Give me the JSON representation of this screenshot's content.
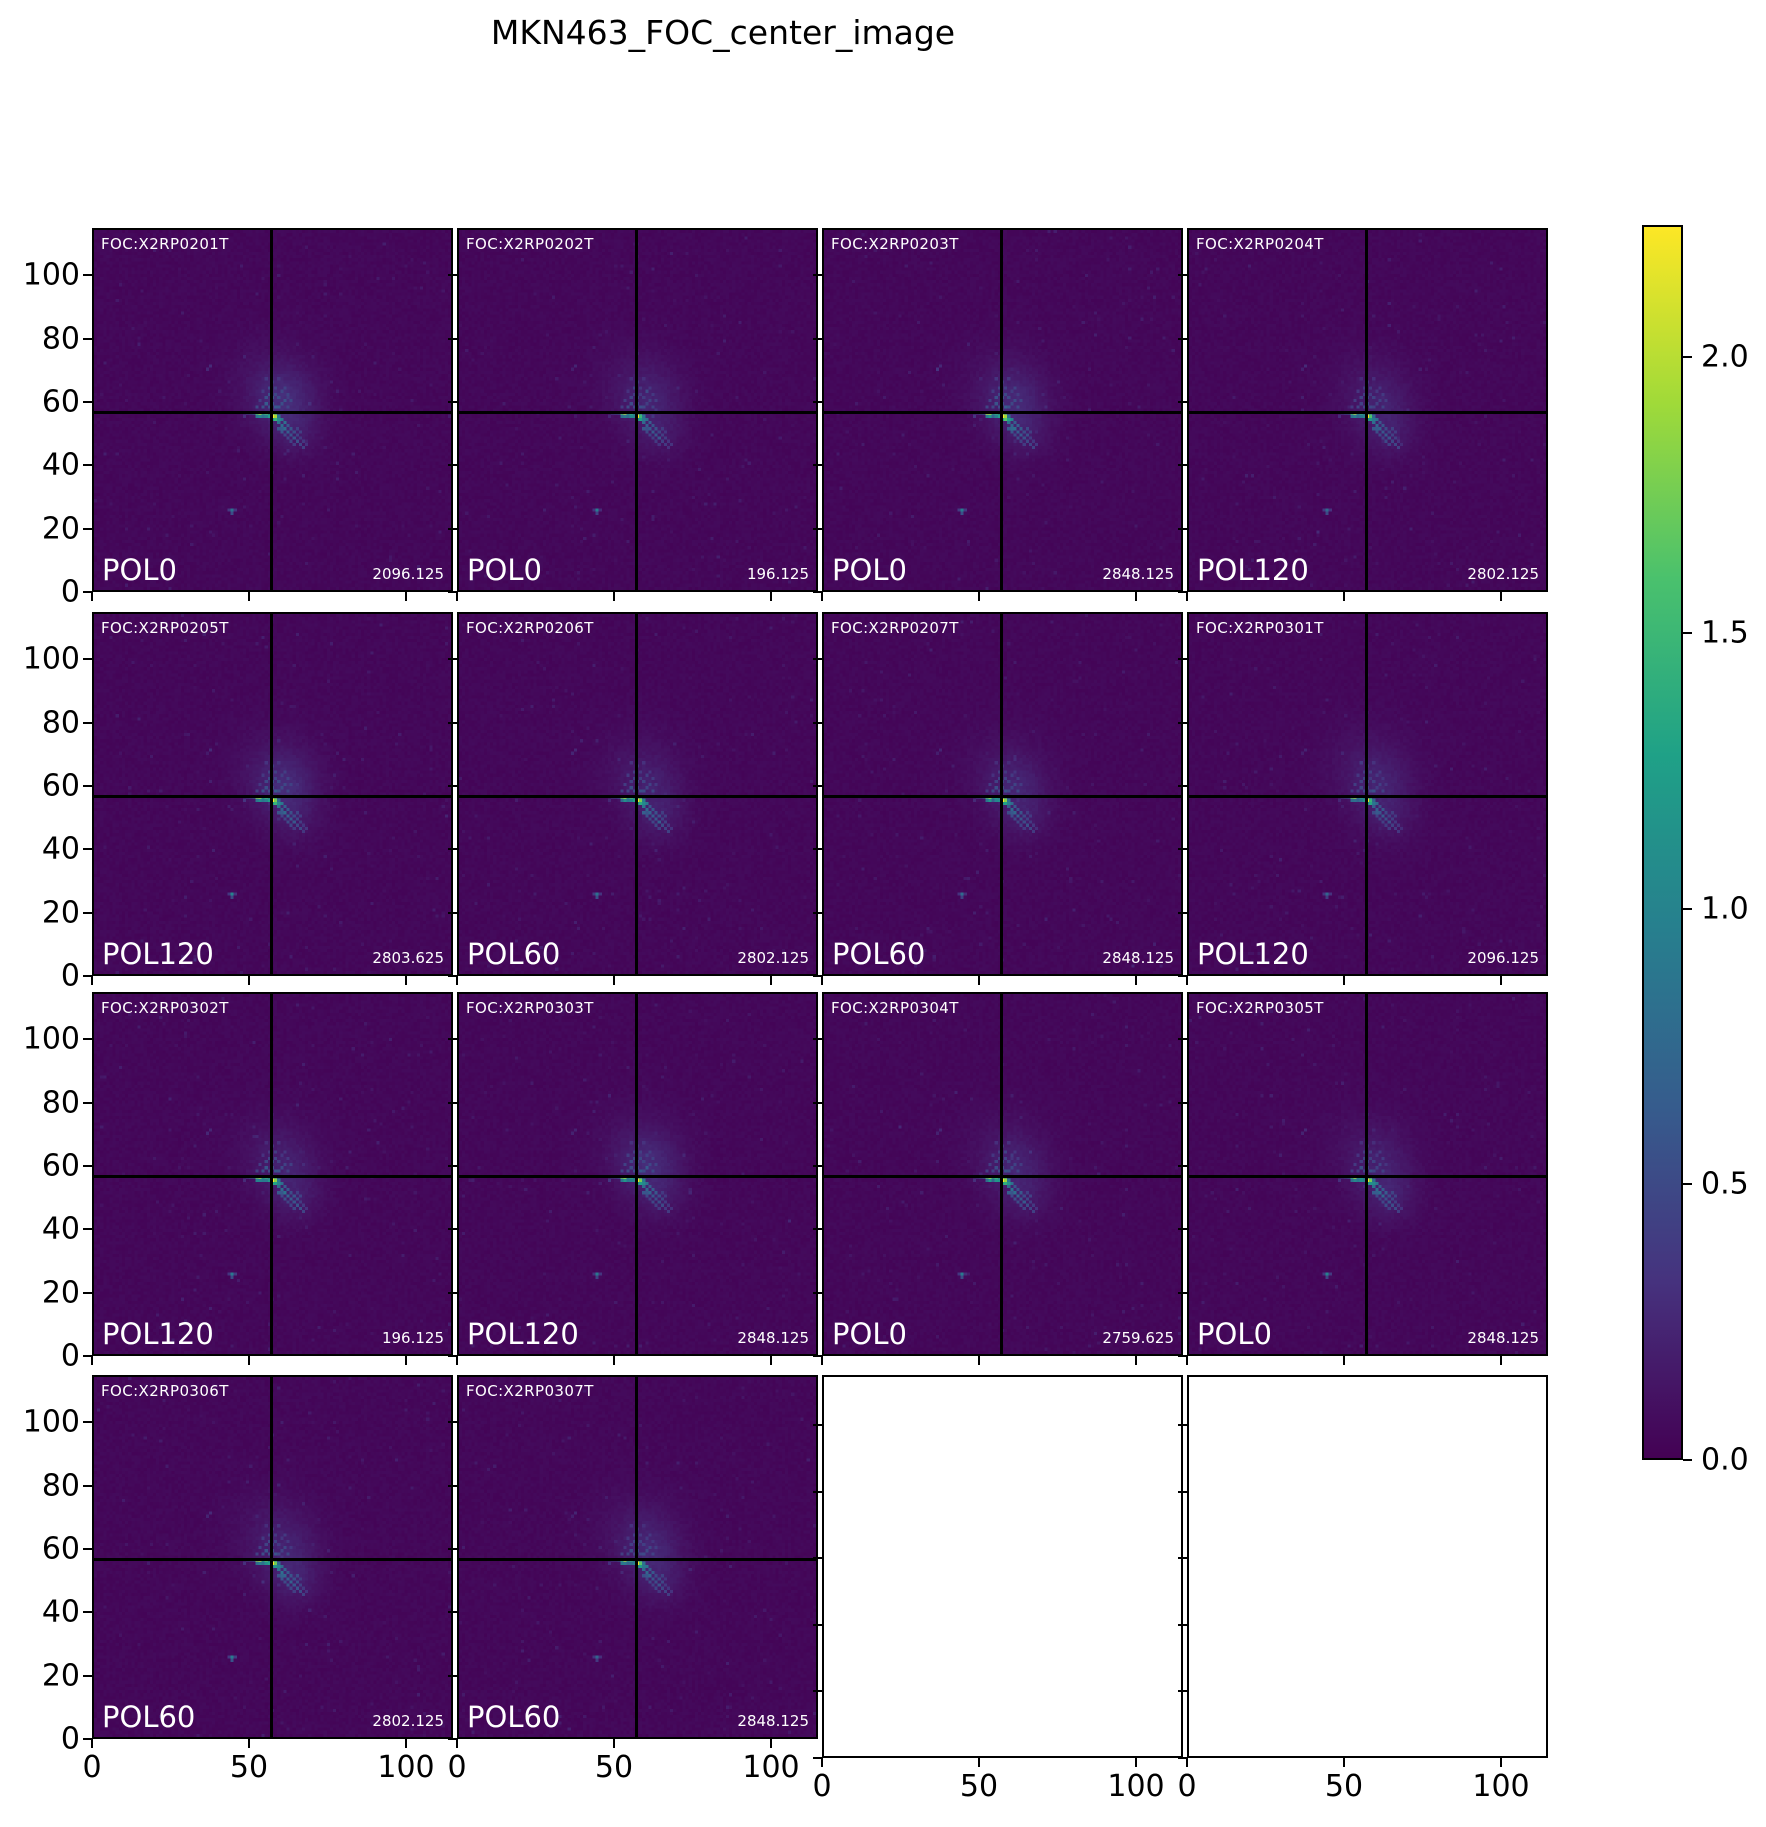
{
  "title": "MKN463_FOC_center_image",
  "colors": {
    "background": "#ffffff",
    "panel_background": "#440154",
    "crosshair": "#000000",
    "panel_text": "#ffffff",
    "axis_text": "#000000",
    "viridis_stops": [
      "#440154",
      "#46327e",
      "#365c8d",
      "#277f8e",
      "#1fa187",
      "#4ac16d",
      "#a0da39",
      "#fde725"
    ]
  },
  "axes": {
    "x_tick_labels": [
      "0",
      "50",
      "100"
    ],
    "x_tick_values": [
      0,
      50,
      100
    ],
    "y_tick_labels": [
      "0",
      "20",
      "40",
      "60",
      "80",
      "100"
    ],
    "y_tick_values": [
      0,
      20,
      40,
      60,
      80,
      100
    ],
    "axis_max": 115
  },
  "colorbar": {
    "colormap": "viridis",
    "tick_labels": [
      "2.0",
      "1.5",
      "1.0",
      "0.5",
      "0.0"
    ],
    "tick_values": [
      2.0,
      1.5,
      1.0,
      0.5,
      0.0
    ],
    "vmin": 0.0,
    "vmax": 2.24
  },
  "chart_data": {
    "type": "heatmap",
    "title": "MKN463_FOC_center_image",
    "colormap": "viridis",
    "value_range": [
      0.0,
      2.24
    ],
    "colorbar_ticks": [
      2.0,
      1.5,
      1.0,
      0.5,
      0.0
    ],
    "x_ticks": [
      0,
      50,
      100
    ],
    "y_ticks": [
      0,
      20,
      40,
      60,
      80,
      100
    ],
    "axis_range": [
      0,
      115
    ],
    "grid": {
      "rows": 4,
      "cols": 4
    },
    "crosshair": {
      "x": 57,
      "y": 57
    },
    "source_peak": {
      "x": 57,
      "y": 55
    },
    "secondary_spot": {
      "x": 44,
      "y": 25
    },
    "panels": [
      {
        "foc_id": "FOC:X2RP0201T",
        "pol": "POL0",
        "value": "2096.125",
        "empty": false
      },
      {
        "foc_id": "FOC:X2RP0202T",
        "pol": "POL0",
        "value": "196.125",
        "empty": false
      },
      {
        "foc_id": "FOC:X2RP0203T",
        "pol": "POL0",
        "value": "2848.125",
        "empty": false
      },
      {
        "foc_id": "FOC:X2RP0204T",
        "pol": "POL120",
        "value": "2802.125",
        "empty": false
      },
      {
        "foc_id": "FOC:X2RP0205T",
        "pol": "POL120",
        "value": "2803.625",
        "empty": false
      },
      {
        "foc_id": "FOC:X2RP0206T",
        "pol": "POL60",
        "value": "2802.125",
        "empty": false
      },
      {
        "foc_id": "FOC:X2RP0207T",
        "pol": "POL60",
        "value": "2848.125",
        "empty": false
      },
      {
        "foc_id": "FOC:X2RP0301T",
        "pol": "POL120",
        "value": "2096.125",
        "empty": false
      },
      {
        "foc_id": "FOC:X2RP0302T",
        "pol": "POL120",
        "value": "196.125",
        "empty": false
      },
      {
        "foc_id": "FOC:X2RP0303T",
        "pol": "POL120",
        "value": "2848.125",
        "empty": false
      },
      {
        "foc_id": "FOC:X2RP0304T",
        "pol": "POL0",
        "value": "2759.625",
        "empty": false
      },
      {
        "foc_id": "FOC:X2RP0305T",
        "pol": "POL0",
        "value": "2848.125",
        "empty": false
      },
      {
        "foc_id": "FOC:X2RP0306T",
        "pol": "POL60",
        "value": "2802.125",
        "empty": false
      },
      {
        "foc_id": "FOC:X2RP0307T",
        "pol": "POL60",
        "value": "2848.125",
        "empty": false
      },
      {
        "empty": true
      },
      {
        "empty": true
      }
    ]
  }
}
